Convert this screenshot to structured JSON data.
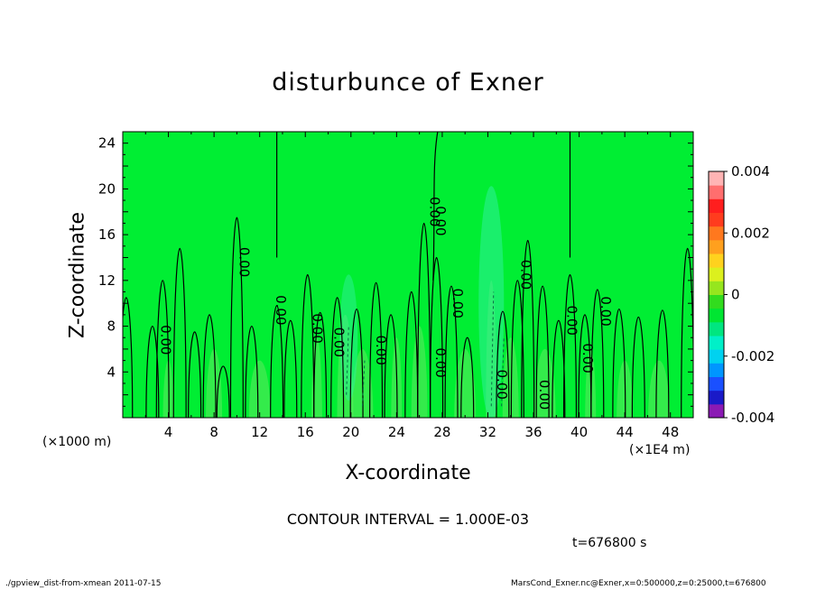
{
  "title": "disturbunce of Exner",
  "xlabel": "X-coordinate",
  "ylabel": "Z-coordinate",
  "x_unit_note": "(×1000 m)",
  "x_scale_note": "(×1E4 m)",
  "contour_interval": "CONTOUR INTERVAL = 1.000E-03",
  "time_label": "t=676800 s",
  "footer_left": "./gpview_dist-from-xmean   2011-07-15",
  "footer_right": "MarsCond_Exner.nc@Exner,x=0:500000,z=0:25000,t=676800",
  "colors": {
    "background_field": "#00ee33",
    "colorbar": [
      "#8b1ab4",
      "#1a1ac8",
      "#1a50ff",
      "#0096ff",
      "#00d2f0",
      "#00f0c8",
      "#00e680",
      "#00e632",
      "#32dc1e",
      "#96e61e",
      "#dcf01e",
      "#ffd21e",
      "#ffa01e",
      "#ff781e",
      "#ff3c1e",
      "#ff1e1e",
      "#ff6e6e",
      "#ffb4b4"
    ]
  },
  "chart_data": {
    "type": "heatmap",
    "title": "disturbunce of Exner",
    "xlabel": "X-coordinate",
    "ylabel": "Z-coordinate",
    "xlim": [
      0,
      50
    ],
    "ylim": [
      0,
      25
    ],
    "xticks": [
      4,
      8,
      12,
      16,
      20,
      24,
      28,
      32,
      36,
      40,
      44,
      48
    ],
    "yticks": [
      4,
      8,
      12,
      16,
      20,
      24
    ],
    "colorbar": {
      "range": [
        -0.004,
        0.004
      ],
      "ticks": [
        "0.004",
        "0.002",
        "0",
        "-0.002",
        "-0.004"
      ]
    },
    "contour_labels": [
      {
        "x": 3.7,
        "y": 6.8,
        "text": "0.00"
      },
      {
        "x": 10.6,
        "y": 13.6,
        "text": "0.00"
      },
      {
        "x": 13.8,
        "y": 9.4,
        "text": "0.00"
      },
      {
        "x": 17.0,
        "y": 7.8,
        "text": "0.00"
      },
      {
        "x": 18.9,
        "y": 6.6,
        "text": "0.00"
      },
      {
        "x": 22.6,
        "y": 5.9,
        "text": "0.00"
      },
      {
        "x": 27.3,
        "y": 18.0,
        "text": "0.00"
      },
      {
        "x": 27.8,
        "y": 17.2,
        "text": "0.00"
      },
      {
        "x": 27.8,
        "y": 4.8,
        "text": "0.00"
      },
      {
        "x": 29.3,
        "y": 10.0,
        "text": "0.00"
      },
      {
        "x": 33.2,
        "y": 2.9,
        "text": "0.00"
      },
      {
        "x": 35.3,
        "y": 12.5,
        "text": "0.00"
      },
      {
        "x": 36.9,
        "y": 2.0,
        "text": "0.00"
      },
      {
        "x": 39.3,
        "y": 8.5,
        "text": "0.00"
      },
      {
        "x": 40.7,
        "y": 5.2,
        "text": "0.00"
      },
      {
        "x": 42.3,
        "y": 9.3,
        "text": "0.00"
      }
    ],
    "contour_interval": 0.001,
    "time": "t=676800 s"
  }
}
